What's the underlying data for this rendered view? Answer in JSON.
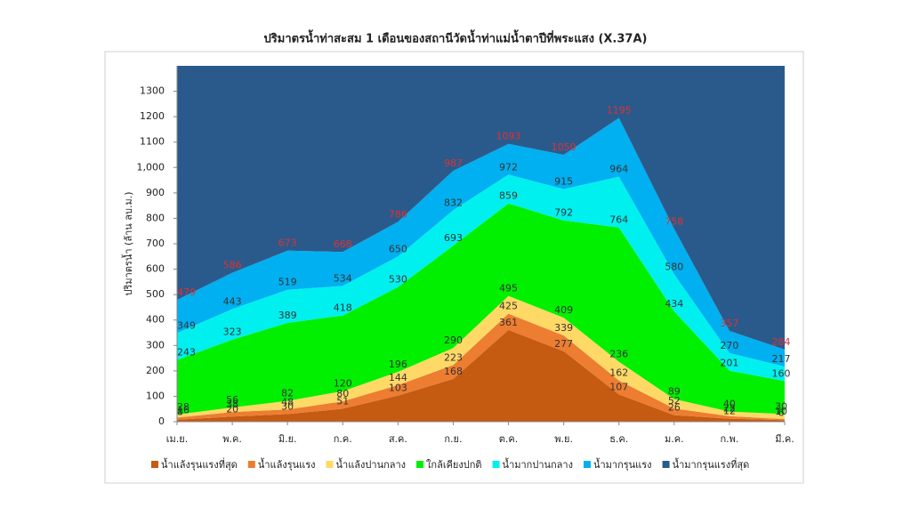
{
  "chart_data": {
    "type": "area",
    "title": "ปริมาตรน้ำท่าสะสม 1 เดือนของสถานีวัดน้ำท่าแม่น้ำตาปีที่พระแสง (X.37A)",
    "y_label": "ปริมาตรน้ำ (ล้าน ลบ.ม.)",
    "categories": [
      "เม.ย.",
      "พ.ค.",
      "มิ.ย.",
      "ก.ค.",
      "ส.ค.",
      "ก.ย.",
      "ต.ค.",
      "พ.ย.",
      "ธ.ค.",
      "ม.ค.",
      "ก.พ.",
      "มี.ค."
    ],
    "ylim": [
      0,
      1400
    ],
    "yticks": [
      0,
      100,
      200,
      300,
      400,
      500,
      600,
      700,
      800,
      900,
      1000,
      1100,
      1200,
      1300,
      {
        "value": 1000,
        "label": "1,000"
      }
    ],
    "series": [
      {
        "name": "น้ำแล้งรุนแรงที่สุด",
        "color": "#c55a11",
        "label_color": "#333333",
        "values": [
          8,
          20,
          30,
          51,
          103,
          168,
          361,
          277,
          107,
          26,
          12,
          6
        ]
      },
      {
        "name": "น้ำแล้งรุนแรง",
        "color": "#ed7d31",
        "label_color": "#333333",
        "values": [
          16,
          38,
          48,
          80,
          144,
          223,
          425,
          339,
          162,
          52,
          22,
          10
        ]
      },
      {
        "name": "น้ำแล้งปานกลาง",
        "color": "#ffd966",
        "label_color": "#333333",
        "values": [
          28,
          56,
          82,
          120,
          196,
          290,
          495,
          409,
          236,
          89,
          40,
          30
        ]
      },
      {
        "name": "ใกล้เคียงปกติ",
        "color": "#00f000",
        "label_color": "#333333",
        "values": [
          243,
          323,
          389,
          418,
          530,
          693,
          859,
          792,
          764,
          434,
          201,
          160
        ]
      },
      {
        "name": "น้ำมากปานกลาง",
        "color": "#00f0f0",
        "label_color": "#333333",
        "values": [
          349,
          443,
          519,
          534,
          650,
          832,
          972,
          915,
          964,
          580,
          270,
          217
        ]
      },
      {
        "name": "น้ำมากรุนแรง",
        "color": "#00b0f0",
        "label_color": "#e03030",
        "values": [
          479,
          586,
          673,
          668,
          786,
          987,
          1093,
          1050,
          1195,
          758,
          357,
          284
        ]
      },
      {
        "name": "น้ำมากรุนแรงที่สุด",
        "color": "#2a5a8c"
      }
    ]
  }
}
